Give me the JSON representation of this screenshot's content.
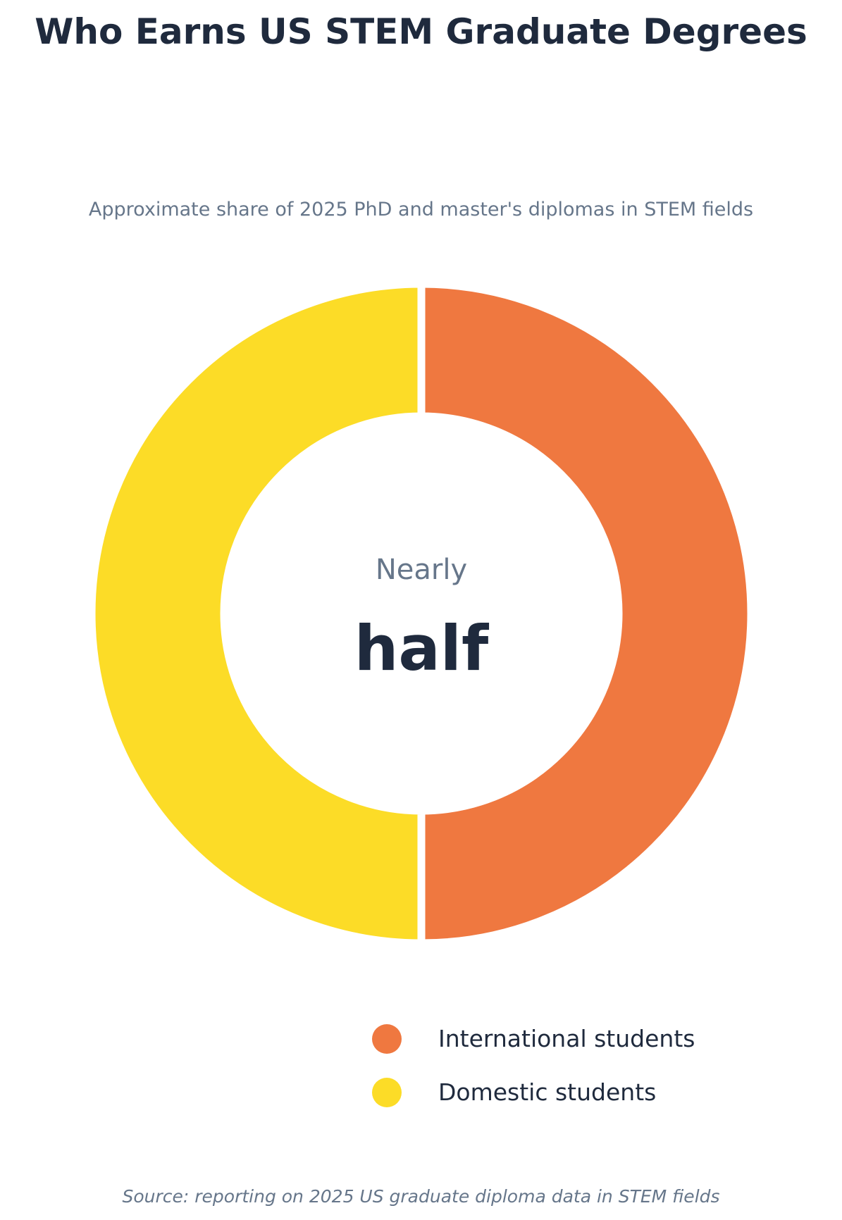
{
  "chart_data": {
    "type": "pie",
    "title": "Who Earns US STEM Graduate Degrees",
    "subtitle": "Approximate share of 2025 PhD and master's diplomas in STEM fields",
    "center_label": {
      "top": "Nearly",
      "main": "half"
    },
    "series": [
      {
        "name": "International students",
        "value": 50,
        "color": "#ef7840"
      },
      {
        "name": "Domestic students",
        "value": 50,
        "color": "#fcdc27"
      }
    ],
    "legend_position": "bottom-right",
    "source": "Source: reporting on 2025 US graduate diploma data in STEM fields"
  }
}
